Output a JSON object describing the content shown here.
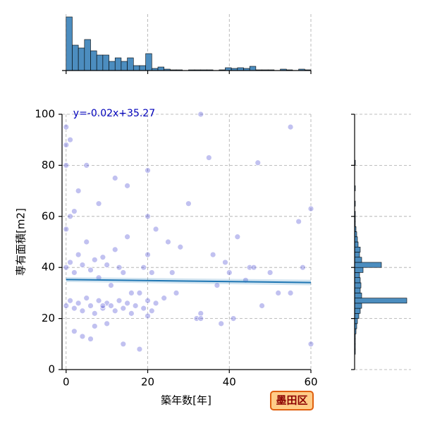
{
  "chart_data": {
    "type": "joint-scatter",
    "x_label": "築年数[年]",
    "y_label": "専有面積[m2]",
    "badge": "墨田区",
    "xlim": [
      -1,
      60
    ],
    "ylim": [
      0,
      100
    ],
    "xticks": [
      0,
      20,
      40,
      60
    ],
    "yticks": [
      0,
      20,
      40,
      60,
      80,
      100
    ],
    "grid": true,
    "color": "#3333cc",
    "x": [
      0,
      0,
      0,
      0,
      1,
      1,
      2,
      2,
      3,
      3,
      4,
      4,
      5,
      5,
      6,
      6,
      7,
      7,
      8,
      8,
      9,
      9,
      10,
      10,
      11,
      11,
      12,
      12,
      13,
      13,
      14,
      14,
      15,
      15,
      16,
      17,
      18,
      19,
      19,
      20,
      20,
      20,
      21,
      21,
      22,
      1,
      3,
      5,
      8,
      12,
      15,
      0,
      2,
      6,
      10,
      14,
      18,
      20,
      22,
      25,
      27,
      30,
      32,
      33,
      35,
      36,
      38,
      39,
      40,
      41,
      42,
      44,
      45,
      47,
      48,
      50,
      52,
      55,
      57,
      58,
      60,
      33,
      37,
      28,
      24,
      0,
      1,
      4,
      16,
      20,
      33,
      55,
      60,
      9,
      26,
      46,
      2,
      7
    ],
    "y": [
      25,
      40,
      55,
      95,
      27,
      42,
      24,
      38,
      26,
      45,
      23,
      41,
      28,
      50,
      25,
      39,
      22,
      43,
      27,
      36,
      24,
      44,
      26,
      41,
      25,
      33,
      23,
      47,
      27,
      40,
      24,
      38,
      26,
      52,
      22,
      25,
      30,
      24,
      40,
      21,
      27,
      45,
      23,
      38,
      26,
      60,
      70,
      80,
      65,
      75,
      72,
      88,
      15,
      12,
      18,
      10,
      8,
      60,
      55,
      50,
      30,
      65,
      20,
      100,
      83,
      45,
      18,
      42,
      38,
      20,
      52,
      35,
      40,
      81,
      25,
      38,
      30,
      95,
      58,
      40,
      63,
      22,
      33,
      48,
      28,
      80,
      90,
      13,
      30,
      78,
      20,
      30,
      10,
      25,
      38,
      40,
      62,
      17
    ],
    "regression": {
      "label": "y=-0.02x+35.27",
      "color": "#1f77b4",
      "x": [
        0,
        60
      ],
      "y": [
        35.27,
        34.07
      ],
      "ci_lower": [
        34.3,
        33.0
      ],
      "ci_upper": [
        36.2,
        35.2
      ]
    },
    "top_histogram": {
      "color": "#4c8dbf",
      "ylim": [
        0,
        80
      ],
      "bins": [
        0,
        1.5,
        3,
        4.5,
        6,
        7.5,
        9,
        10.5,
        12,
        13.5,
        15,
        16.5,
        18,
        19.5,
        21,
        22.5,
        24,
        25.5,
        27,
        28.5,
        30,
        31.5,
        33,
        34.5,
        36,
        37.5,
        39,
        40.5,
        42,
        43.5,
        45,
        46.5,
        48,
        49.5,
        51,
        52.5,
        54,
        55.5,
        57,
        58.5,
        60
      ],
      "counts": [
        76,
        36,
        32,
        44,
        28,
        22,
        22,
        13,
        18,
        13,
        18,
        7,
        7,
        24,
        3,
        5,
        2,
        1,
        1,
        0,
        1,
        1,
        1,
        1,
        0,
        1,
        4,
        3,
        4,
        3,
        6,
        1,
        1,
        1,
        0,
        2,
        1,
        0,
        2,
        1
      ]
    },
    "right_histogram": {
      "color": "#4c8dbf",
      "xlim": [
        0,
        80
      ],
      "bins": [
        0,
        2,
        4,
        6,
        8,
        10,
        12,
        14,
        16,
        18,
        20,
        22,
        24,
        26,
        28,
        30,
        32,
        34,
        36,
        38,
        40,
        42,
        44,
        46,
        48,
        50,
        52,
        54,
        56,
        58,
        60,
        62,
        64,
        66,
        68,
        70,
        72,
        74,
        76,
        78,
        80,
        82,
        84,
        86,
        88,
        90,
        92,
        94,
        96,
        98,
        100
      ],
      "counts": [
        0,
        0,
        0,
        1,
        1,
        1,
        1,
        2,
        3,
        4,
        6,
        8,
        10,
        74,
        10,
        8,
        9,
        8,
        7,
        12,
        38,
        10,
        7,
        8,
        5,
        4,
        3,
        2,
        1,
        1,
        1,
        0,
        1,
        0,
        0,
        1,
        0,
        0,
        0,
        0,
        1,
        0,
        0,
        0,
        0,
        0,
        0,
        0,
        0,
        0
      ]
    }
  }
}
